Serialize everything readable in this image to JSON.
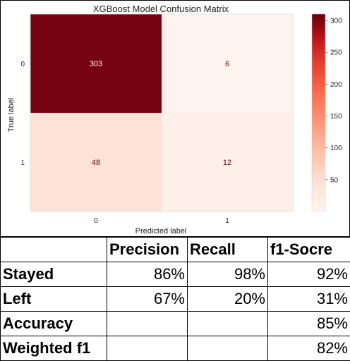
{
  "chart_data": {
    "type": "heatmap",
    "title": "XGBoost Model Confusion Matrix",
    "xlabel": "Predicted label",
    "ylabel": "True label",
    "x_categories": [
      "0",
      "1"
    ],
    "y_categories": [
      "0",
      "1"
    ],
    "values": [
      [
        303,
        6
      ],
      [
        48,
        12
      ]
    ],
    "colormap": "Reds",
    "color_range": [
      0,
      310
    ],
    "colorbar_ticks": [
      50,
      100,
      150,
      200,
      250,
      300
    ],
    "grid": false
  },
  "metrics_table": {
    "headers": [
      "",
      "Precision",
      "Recall",
      "f1-Socre"
    ],
    "rows": [
      {
        "label": "Stayed",
        "precision": "86%",
        "recall": "98%",
        "f1": "92%"
      },
      {
        "label": "Left",
        "precision": "67%",
        "recall": "20%",
        "f1": "31%"
      },
      {
        "label": "Accuracy",
        "precision": "",
        "recall": "",
        "f1": "85%"
      },
      {
        "label": "Weighted f1",
        "precision": "",
        "recall": "",
        "f1": "82%"
      }
    ]
  }
}
